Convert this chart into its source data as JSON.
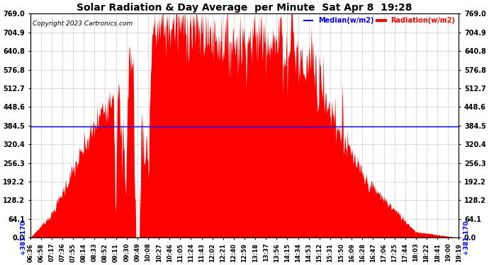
{
  "title": "Solar Radiation & Day Average  per Minute  Sat Apr 8  19:28",
  "copyright": "Copyright 2023 Cartronics.com",
  "legend_median": "Median(w/m2)",
  "legend_radiation": "Radiation(w/m2)",
  "median_value": 381.17,
  "y_max": 769.0,
  "y_min": 0.0,
  "y_ticks": [
    0.0,
    64.1,
    128.2,
    192.2,
    256.3,
    320.4,
    384.5,
    448.6,
    512.7,
    576.8,
    640.8,
    704.9,
    769.0
  ],
  "x_tick_labels": [
    "06:36",
    "06:58",
    "07:17",
    "07:36",
    "07:55",
    "08:14",
    "08:33",
    "08:52",
    "09:11",
    "09:30",
    "09:49",
    "10:08",
    "10:27",
    "10:46",
    "11:05",
    "11:24",
    "11:43",
    "12:02",
    "12:21",
    "12:40",
    "12:59",
    "13:18",
    "13:37",
    "13:56",
    "14:15",
    "14:34",
    "14:53",
    "15:12",
    "15:31",
    "15:50",
    "16:09",
    "16:28",
    "16:47",
    "17:06",
    "17:25",
    "17:44",
    "18:03",
    "18:22",
    "18:41",
    "19:00",
    "19:19"
  ],
  "background_color": "#ffffff",
  "plot_bg_color": "#ffffff",
  "grid_color": "#aaaaaa",
  "fill_color": "#ff0000",
  "median_color": "#0000ff",
  "title_color": "#000000",
  "copyright_color": "#000000",
  "legend_median_color": "#0000ff",
  "legend_radiation_color": "#ff0000",
  "figwidth": 6.9,
  "figheight": 3.75,
  "dpi": 100
}
